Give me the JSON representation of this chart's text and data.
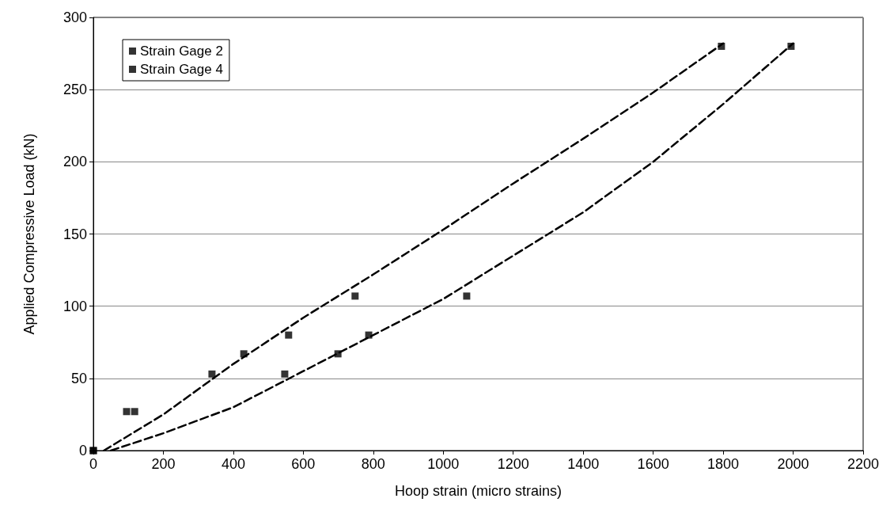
{
  "chart_data": {
    "type": "scatter",
    "xlabel": "Hoop strain (micro strains)",
    "ylabel": "Applied Compressive Load (kN)",
    "xlim": [
      0,
      2200
    ],
    "xticks": [
      0,
      200,
      400,
      600,
      800,
      1000,
      1200,
      1400,
      1600,
      1800,
      2000,
      2200
    ],
    "ylim": [
      0,
      300
    ],
    "yticks": [
      0,
      50,
      100,
      150,
      200,
      250,
      300
    ],
    "grid": "y",
    "legend": "top left",
    "marker": "square",
    "series": [
      {
        "name": "Strain Gage 2",
        "color": "#000000",
        "x": [
          0,
          95,
          339,
          430,
          558,
          748,
          1795
        ],
        "values": [
          0,
          27,
          53,
          67,
          80,
          107,
          280
        ]
      },
      {
        "name": "Strain Gage 4",
        "color": "#000000",
        "x": [
          0,
          118,
          547,
          699,
          787,
          1067,
          1994
        ],
        "values": [
          0,
          27,
          53,
          67,
          80,
          107,
          280
        ]
      },
      {
        "type": "line",
        "color": "#000000",
        "line_style": "dashed",
        "marker": "none",
        "x": [
          30,
          200,
          400,
          600,
          800,
          1000,
          1200,
          1400,
          1600,
          1800
        ],
        "values": [
          0,
          25,
          60,
          92,
          122,
          153,
          185,
          216,
          248,
          282
        ]
      },
      {
        "type": "line",
        "color": "#000000",
        "line_style": "dashed",
        "marker": "none",
        "x": [
          50,
          200,
          400,
          600,
          800,
          1000,
          1200,
          1400,
          1600,
          1800,
          2000
        ],
        "values": [
          0,
          12,
          30,
          55,
          80,
          105,
          135,
          165,
          200,
          240,
          282
        ]
      }
    ]
  }
}
